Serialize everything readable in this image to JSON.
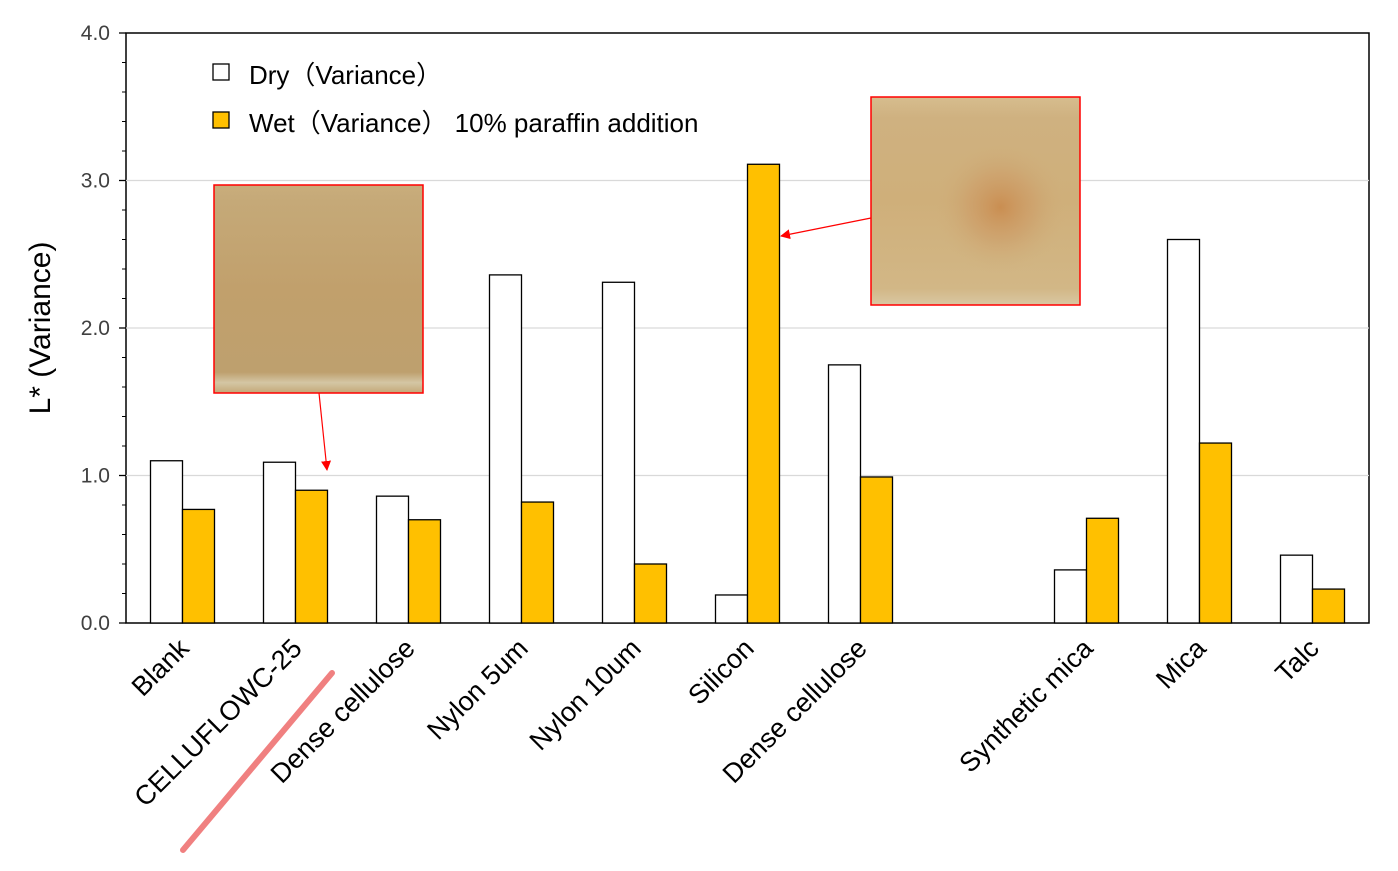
{
  "chart_data": {
    "type": "bar",
    "ylabel": "L* (Variance)",
    "ylim": [
      0,
      4
    ],
    "yticks": [
      "0.0",
      "1.0",
      "2.0",
      "3.0",
      "4.0"
    ],
    "grid": true,
    "legend_position": "top-left",
    "categories": [
      "Blank",
      "CELLUFLOWC-25",
      "Dense cellulose",
      "Nylon 5um",
      "Nylon 10um",
      "Silicon",
      "Dense cellulose",
      "",
      "Synthetic mica",
      "Mica",
      "Talc"
    ],
    "series": [
      {
        "name": "Dry（Variance）",
        "color": "#ffffff",
        "values": [
          1.1,
          1.09,
          0.86,
          2.36,
          2.31,
          0.19,
          1.75,
          null,
          0.36,
          2.6,
          0.46
        ]
      },
      {
        "name": "Wet（Variance） 10% paraffin addition",
        "color": "#ffc000",
        "values": [
          0.77,
          0.9,
          0.7,
          0.82,
          0.4,
          3.11,
          0.99,
          null,
          0.71,
          1.22,
          0.23
        ]
      }
    ],
    "highlight_category": "CELLUFLOWC-25",
    "highlight_color": "#f08080",
    "annotation_color": "#ff0000"
  }
}
